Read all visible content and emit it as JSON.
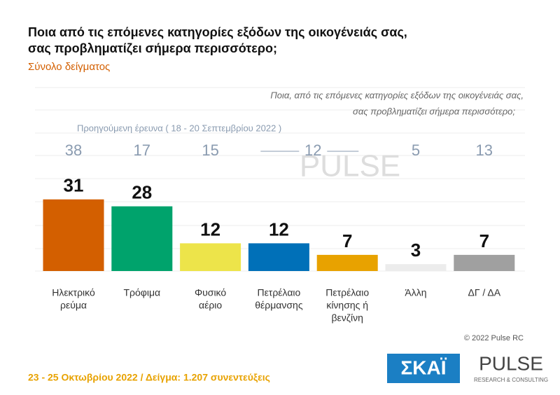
{
  "chart_data": {
    "type": "bar",
    "title": [
      "Ποια από τις επόμενες κατηγορίες εξόδων της οικογένειάς σας,",
      "σας προβληματίζει σήμερα περισσότερο;"
    ],
    "subtitle": "Σύνολο δείγματος",
    "question": [
      "Ποια, από τις επόμενες κατηγορίες εξόδων της οικογένειάς σας,",
      "σας προβληματίζει σήμερα περισσότερο;"
    ],
    "categories": [
      [
        "Ηλεκτρικό",
        "ρεύμα"
      ],
      [
        "Τρόφιμα"
      ],
      [
        "Φυσικό",
        "αέριο"
      ],
      [
        "Πετρέλαιο",
        "θέρμανσης"
      ],
      [
        "Πετρέλαιο",
        "κίνησης ή",
        "βενζίνη"
      ],
      [
        "Άλλη"
      ],
      [
        "ΔΓ / ΔΑ"
      ]
    ],
    "values": [
      31,
      28,
      12,
      12,
      7,
      3,
      7
    ],
    "colors": [
      "#d35f00",
      "#00a36c",
      "#ede44a",
      "#0070b8",
      "#e8a200",
      "#ececec",
      "#a0a0a0"
    ],
    "previous": {
      "label": "Προηγούμενη έρευνα ( 18 - 20 Σεπτεμβρίου 2022 )",
      "values": [
        38,
        17,
        15,
        12,
        null,
        5,
        13
      ]
    },
    "copyright": "© 2022 Pulse RC",
    "footer": "23 - 25 Οκτωβρίου 2022  /  Δείγμα:  1.207 συνεντεύξεις",
    "logos": {
      "skai": "ΣΚΑΪ",
      "pulse": "PULSE",
      "pulse_sub": "RESEARCH & CONSULTING"
    }
  }
}
